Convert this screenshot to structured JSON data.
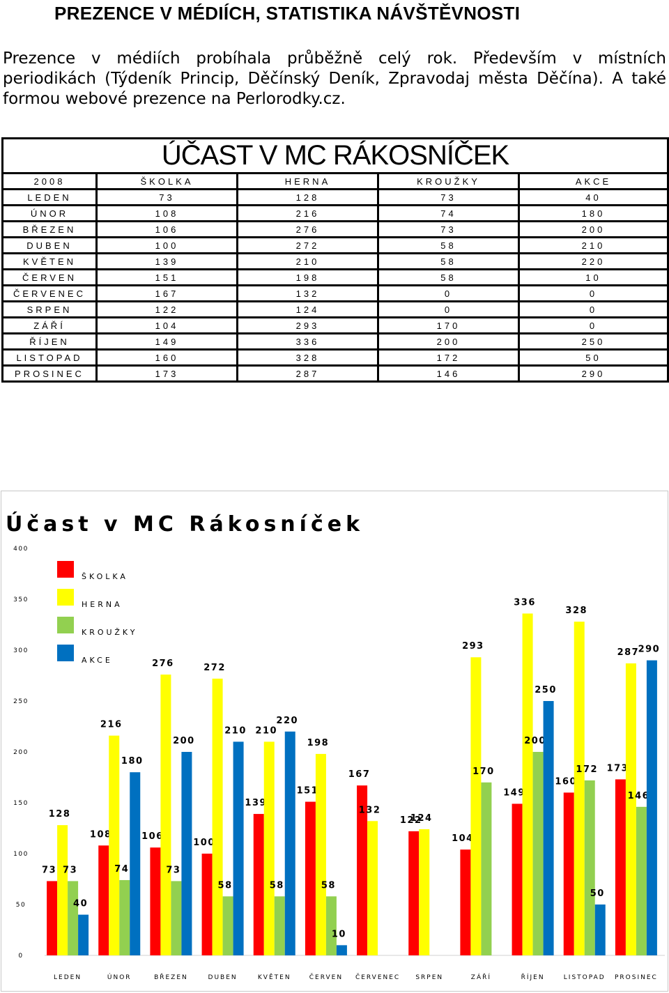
{
  "page": {
    "heading": "PREZENCE V MÉDIÍCH, STATISTIKA NÁVŠTĚVNOSTI",
    "paragraph": "Prezence v médiích probíhala průběžně celý rok. Především v místních periodikách (Týdeník Princip, Děčínský Deník, Zpravodaj města Děčína). A také formou webové prezence na Perlorodky.cz."
  },
  "table": {
    "title": "ÚČAST V MC RÁKOSNÍČEK",
    "columns": [
      "2008",
      "ŠKOLKA",
      "HERNA",
      "KROUŽKY",
      "AKCE"
    ],
    "rows": [
      [
        "LEDEN",
        "73",
        "128",
        "73",
        "40"
      ],
      [
        "ÚNOR",
        "108",
        "216",
        "74",
        "180"
      ],
      [
        "BŘEZEN",
        "106",
        "276",
        "73",
        "200"
      ],
      [
        "DUBEN",
        "100",
        "272",
        "58",
        "210"
      ],
      [
        "KVĚTEN",
        "139",
        "210",
        "58",
        "220"
      ],
      [
        "ČERVEN",
        "151",
        "198",
        "58",
        "10"
      ],
      [
        "ČERVENEC",
        "167",
        "132",
        "0",
        "0"
      ],
      [
        "SRPEN",
        "122",
        "124",
        "0",
        "0"
      ],
      [
        "ZÁŘÍ",
        "104",
        "293",
        "170",
        "0"
      ],
      [
        "ŘÍJEN",
        "149",
        "336",
        "200",
        "250"
      ],
      [
        "LISTOPAD",
        "160",
        "328",
        "172",
        "50"
      ],
      [
        "PROSINEC",
        "173",
        "287",
        "146",
        "290"
      ]
    ]
  },
  "chart_data": {
    "type": "bar",
    "title": "Účast v MC Rákosníček",
    "categories": [
      "LEDEN",
      "ÚNOR",
      "BŘEZEN",
      "DUBEN",
      "KVĚTEN",
      "ČERVEN",
      "ČERVENEC",
      "SRPEN",
      "ZÁŘÍ",
      "ŘÍJEN",
      "LISTOPAD",
      "PROSINEC"
    ],
    "series": [
      {
        "name": "ŠKOLKA",
        "color": "#ff0000",
        "values": [
          73,
          108,
          106,
          100,
          139,
          151,
          167,
          122,
          104,
          149,
          160,
          173
        ]
      },
      {
        "name": "HERNA",
        "color": "#ffff00",
        "values": [
          128,
          216,
          276,
          272,
          210,
          198,
          132,
          124,
          293,
          336,
          328,
          287
        ]
      },
      {
        "name": "KROUŽKY",
        "color": "#92d050",
        "values": [
          73,
          74,
          73,
          58,
          58,
          58,
          0,
          0,
          170,
          200,
          172,
          146
        ]
      },
      {
        "name": "AKCE",
        "color": "#0070c0",
        "values": [
          40,
          180,
          200,
          210,
          220,
          10,
          0,
          0,
          0,
          250,
          50,
          290
        ]
      }
    ],
    "ylim": [
      0,
      400
    ],
    "yticks": [
      0,
      50,
      100,
      150,
      200,
      250,
      300,
      350,
      400
    ],
    "grid": false,
    "legend": "top-left",
    "data_labels": true
  }
}
